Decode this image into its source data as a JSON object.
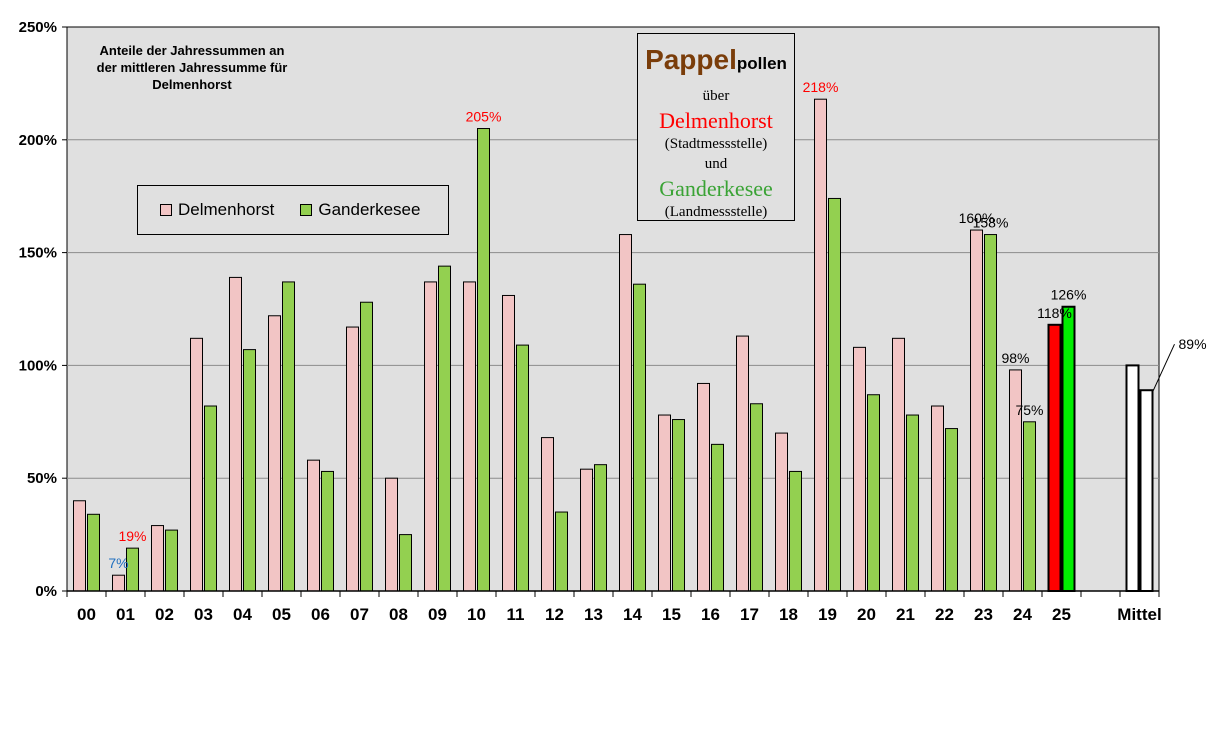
{
  "chart_data": {
    "type": "bar",
    "note_lines": [
      "Anteile der Jahressummen  an",
      "der mittleren Jahressumme  für",
      "Delmenhorst"
    ],
    "title_box": {
      "part1": "Pappel",
      "part2": "pollen",
      "line2": "über",
      "line3": "Delmenhorst",
      "line4": "(Stadtmessstelle)",
      "line5": "und",
      "line6": "Ganderkesee",
      "line7": "(Landmessstelle)"
    },
    "categories": [
      "00",
      "01",
      "02",
      "03",
      "04",
      "05",
      "06",
      "07",
      "08",
      "09",
      "10",
      "11",
      "12",
      "13",
      "14",
      "15",
      "16",
      "17",
      "18",
      "19",
      "20",
      "21",
      "22",
      "23",
      "24",
      "25",
      "",
      "Mittel"
    ],
    "series": [
      {
        "name": "Delmenhorst",
        "color": "#f2c5c5",
        "values": [
          40,
          7,
          29,
          112,
          139,
          122,
          58,
          117,
          50,
          137,
          137,
          131,
          68,
          54,
          158,
          78,
          92,
          113,
          70,
          218,
          108,
          112,
          82,
          160,
          98,
          118,
          null,
          100
        ]
      },
      {
        "name": "Ganderkesee",
        "color": "#93d050",
        "values": [
          34,
          19,
          27,
          82,
          107,
          137,
          53,
          128,
          25,
          144,
          205,
          109,
          35,
          56,
          136,
          76,
          65,
          83,
          53,
          174,
          87,
          78,
          72,
          158,
          75,
          126,
          null,
          89
        ]
      }
    ],
    "highlight_colors": {
      "Delmenhorst": "#ff0000",
      "Ganderkesee": "#00ee00"
    },
    "mittel_colors": {
      "Delmenhorst": "#ffffff",
      "Ganderkesee": "#ffffff"
    },
    "yticks": [
      "0%",
      "50%",
      "100%",
      "150%",
      "200%",
      "250%"
    ],
    "ylim": [
      0,
      250
    ],
    "grid": true,
    "legend": "upper-left inside plot",
    "labels": [
      {
        "text": "7%",
        "cat": 1,
        "series": 0,
        "color": "#1f6fbf"
      },
      {
        "text": "19%",
        "cat": 1,
        "series": 1,
        "color": "#ff0000"
      },
      {
        "text": "205%",
        "cat": 10,
        "series": 1,
        "color": "#ff0000"
      },
      {
        "text": "218%",
        "cat": 19,
        "series": 0,
        "color": "#ff0000"
      },
      {
        "text": "160%",
        "cat": 23,
        "series": 0,
        "color": "#000000"
      },
      {
        "text": "158%",
        "cat": 23,
        "series": 1,
        "color": "#000000"
      },
      {
        "text": "98%",
        "cat": 24,
        "series": 0,
        "color": "#000000"
      },
      {
        "text": "75%",
        "cat": 24,
        "series": 1,
        "color": "#000000"
      },
      {
        "text": "118%",
        "cat": 25,
        "series": 0,
        "color": "#000000"
      },
      {
        "text": "126%",
        "cat": 25,
        "series": 1,
        "color": "#000000"
      },
      {
        "text": "89%",
        "cat": 27,
        "series": 1,
        "color": "#000000"
      }
    ]
  }
}
